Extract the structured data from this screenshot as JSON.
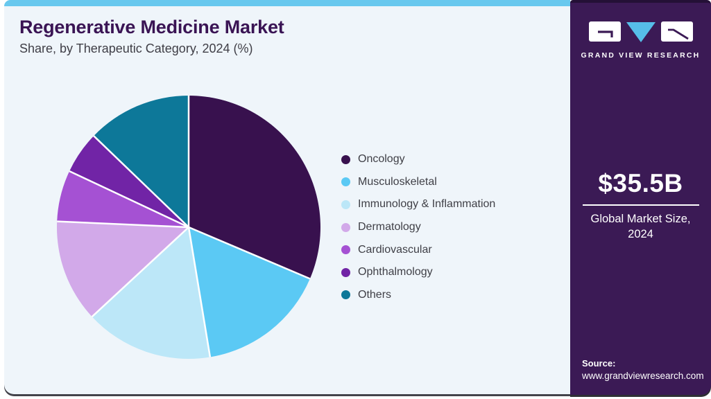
{
  "header": {
    "title": "Regenerative Medicine Market",
    "subtitle": "Share, by Therapeutic Category, 2024 (%)"
  },
  "chart_data": {
    "type": "pie",
    "title": "Regenerative Medicine Market Share, by Therapeutic Category, 2024 (%)",
    "categories": [
      "Oncology",
      "Musculoskeletal",
      "Immunology & Inflammation",
      "Dermatology",
      "Cardiovascular",
      "Ophthalmology",
      "Others"
    ],
    "values": [
      31.4,
      16.0,
      15.7,
      12.6,
      6.3,
      5.2,
      12.8
    ],
    "colors": [
      "#38114e",
      "#5bc9f4",
      "#bce7f8",
      "#d2a9e9",
      "#a551d3",
      "#7124a6",
      "#0d7899"
    ],
    "start_angle_deg": 0,
    "direction": "clockwise",
    "legend_position": "right",
    "slice_border_color": "#ffffff"
  },
  "sidebar": {
    "logo_text": "GRAND VIEW RESEARCH",
    "market_size_value": "$35.5B",
    "market_size_label": "Global Market Size, 2024",
    "source_label": "Source:",
    "source_url": "www.grandviewresearch.com",
    "bg_color": "#3b1a55",
    "logo_triangle_color": "#56bde8"
  },
  "theme": {
    "card_bg": "#eff5fa",
    "top_accent_bar": "#68c8ee",
    "title_color": "#3a1454",
    "subtitle_color": "#3f3e46",
    "legend_text_color": "#3f3f46",
    "bottom_edge": "#43434a"
  }
}
